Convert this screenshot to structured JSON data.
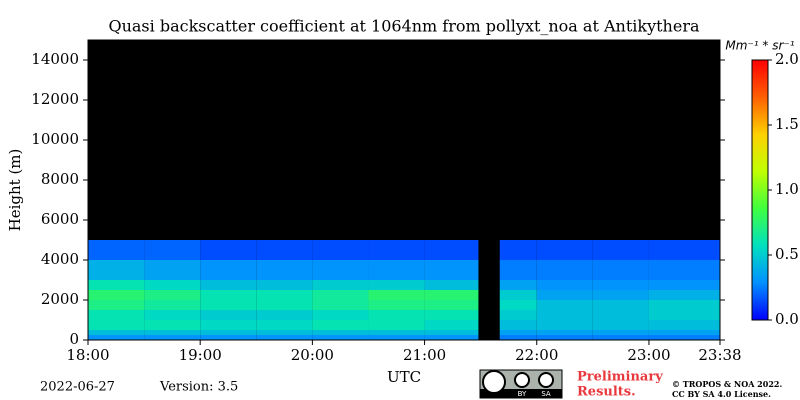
{
  "chart_data": {
    "type": "heatmap",
    "title": "Quasi backscatter coefficient at 1064nm from pollyxt_noa at Antikythera",
    "x_label": "UTC",
    "y_label": "Height (m)",
    "xlim": [
      18,
      23.6333
    ],
    "xticks": [
      {
        "value": 18,
        "label": "18:00"
      },
      {
        "value": 19,
        "label": "19:00"
      },
      {
        "value": 20,
        "label": "20:00"
      },
      {
        "value": 21,
        "label": "21:00"
      },
      {
        "value": 22,
        "label": "22:00"
      },
      {
        "value": 23,
        "label": "23:00"
      },
      {
        "value": 23.6333,
        "label": "23:38"
      }
    ],
    "ylim": [
      0,
      15000
    ],
    "yticks": [
      0,
      2000,
      4000,
      6000,
      8000,
      10000,
      12000,
      14000
    ],
    "background": "#000000",
    "x_edges": [
      18,
      18.5,
      19,
      19.5,
      20,
      20.5,
      21,
      21.48,
      21.67,
      22,
      22.5,
      23,
      23.6333
    ],
    "y_edges": [
      0,
      250,
      500,
      1000,
      1500,
      2000,
      2500,
      3000,
      4000,
      5000
    ],
    "z": [
      [
        0.3,
        0.3,
        0.3,
        0.3,
        0.3,
        0.3,
        0.3,
        null,
        0.25,
        0.25,
        0.25,
        0.25
      ],
      [
        0.45,
        0.45,
        0.45,
        0.45,
        0.45,
        0.45,
        0.45,
        null,
        0.35,
        0.35,
        0.35,
        0.35
      ],
      [
        0.6,
        0.6,
        0.55,
        0.55,
        0.6,
        0.6,
        0.55,
        null,
        0.45,
        0.45,
        0.45,
        0.45
      ],
      [
        0.6,
        0.55,
        0.5,
        0.5,
        0.55,
        0.6,
        0.6,
        null,
        0.5,
        0.45,
        0.45,
        0.5
      ],
      [
        0.7,
        0.65,
        0.6,
        0.6,
        0.65,
        0.7,
        0.7,
        null,
        0.55,
        0.45,
        0.45,
        0.5
      ],
      [
        0.75,
        0.7,
        0.6,
        0.6,
        0.65,
        0.75,
        0.75,
        null,
        0.5,
        0.35,
        0.35,
        0.4
      ],
      [
        0.6,
        0.55,
        0.45,
        0.45,
        0.5,
        0.5,
        0.45,
        null,
        0.35,
        0.3,
        0.3,
        0.3
      ],
      [
        0.4,
        0.35,
        0.3,
        0.3,
        0.3,
        0.3,
        0.3,
        null,
        0.25,
        0.25,
        0.25,
        0.25
      ],
      [
        0.2,
        0.2,
        0.15,
        0.15,
        0.15,
        0.15,
        0.15,
        null,
        0.15,
        0.15,
        0.15,
        0.15
      ]
    ],
    "colorbar": {
      "label": "Mm⁻¹ * sr⁻¹",
      "lim": [
        0,
        2
      ],
      "ticks": [
        {
          "value": 0,
          "label": "0.0"
        },
        {
          "value": 0.5,
          "label": "0.5"
        },
        {
          "value": 1,
          "label": "1.0"
        },
        {
          "value": 1.5,
          "label": "1.5"
        },
        {
          "value": 2,
          "label": "2.0"
        }
      ],
      "colors": [
        "#0000ff",
        "#0090ff",
        "#00e0c0",
        "#40ff40",
        "#c0ff00",
        "#ffd000",
        "#ff6000",
        "#ff0000"
      ]
    },
    "date_label": "2022-06-27",
    "version_label": "Version: 3.5",
    "notice": [
      "Preliminary",
      "Results."
    ],
    "license": [
      "© TROPOS & NOA 2022.",
      "CC BY SA 4.0 License."
    ],
    "cc_badge": [
      "BY",
      "SA"
    ]
  }
}
